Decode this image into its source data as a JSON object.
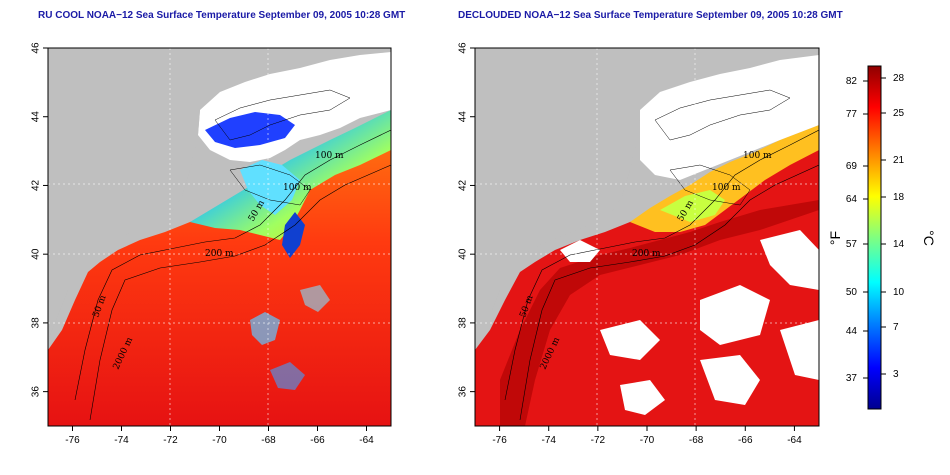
{
  "panels": [
    {
      "title": "RU COOL NOAA−12 Sea Surface Temperature September 09, 2005 10:28 GMT",
      "x_ticks": [
        "-76",
        "-74",
        "-72",
        "-70",
        "-68",
        "-66",
        "-64"
      ],
      "y_ticks": [
        "36",
        "38",
        "40",
        "42",
        "44",
        "46"
      ],
      "contour_labels": [
        "100 m",
        "100 m",
        "50 m",
        "200 m",
        "50 m",
        "2000 m"
      ]
    },
    {
      "title": "DECLOUDED NOAA−12 Sea Surface Temperature September 09, 2005 10:28 GMT",
      "x_ticks": [
        "-76",
        "-74",
        "-72",
        "-70",
        "-68",
        "-66",
        "-64"
      ],
      "y_ticks": [
        "36",
        "38",
        "40",
        "42",
        "44",
        "46"
      ],
      "contour_labels": [
        "100 m",
        "100 m",
        "50 m",
        "200 m",
        "50 m",
        "2000 m"
      ]
    }
  ],
  "colorbar": {
    "fahrenheit_label": "°F",
    "celsius_label": "°C",
    "fahrenheit_ticks": [
      "82",
      "77",
      "69",
      "64",
      "57",
      "50",
      "44",
      "37"
    ],
    "celsius_ticks": [
      "28",
      "25",
      "21",
      "18",
      "14",
      "10",
      "7",
      "3"
    ],
    "colors": [
      "#00008f",
      "#0000ff",
      "#0080ff",
      "#00ffff",
      "#80ff80",
      "#ffff00",
      "#ff8000",
      "#ff0000",
      "#8f0000"
    ]
  },
  "colors": {
    "land": "#bfbfbf",
    "cloud": "#ffffff",
    "warm": "#ff3a10",
    "hot": "#e01010",
    "title": "#1a1aa6"
  }
}
